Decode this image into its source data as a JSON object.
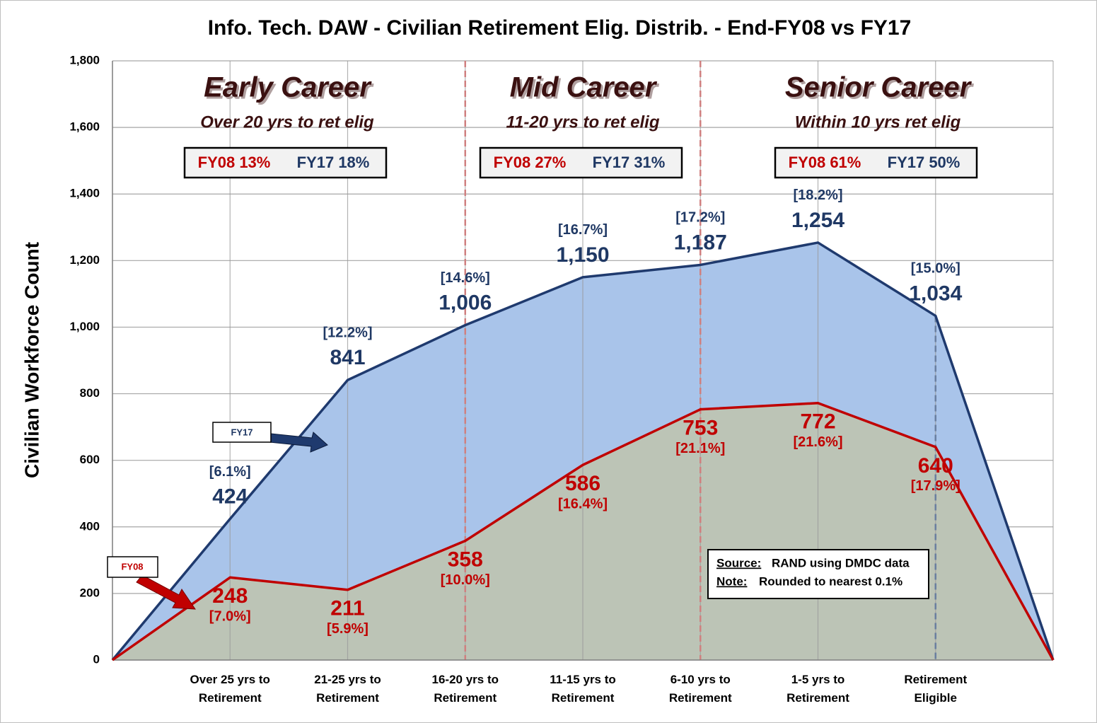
{
  "chart_data": {
    "type": "area",
    "title": "Info. Tech. DAW - Civilian Retirement Elig. Distrib. - End-FY08 vs FY17",
    "y_label": "Civilian Workforce Count",
    "categories": [
      null,
      "Over 25 yrs to Retirement",
      "21-25 yrs to Retirement",
      "16-20 yrs to Retirement",
      "11-15 yrs to Retirement",
      "6-10 yrs to Retirement",
      "1-5 yrs to Retirement",
      "Retirement Eligible",
      null
    ],
    "series": [
      {
        "name": "FY17",
        "color": "#1f3a6e",
        "fill": "#a9c4ea",
        "values": [
          0,
          424,
          841,
          1006,
          1150,
          1187,
          1254,
          1034,
          0
        ],
        "value_labels": [
          null,
          "424",
          "841",
          "1,006",
          "1,150",
          "1,187",
          "1,254",
          "1,034",
          null
        ],
        "share_labels": [
          null,
          "[6.1%]",
          "[12.2%]",
          "[14.6%]",
          "[16.7%]",
          "[17.2%]",
          "[18.2%]",
          "[15.0%]",
          null
        ]
      },
      {
        "name": "FY08",
        "color": "#c00000",
        "fill": "#bcc4b6",
        "values": [
          0,
          248,
          211,
          358,
          586,
          753,
          772,
          640,
          0
        ],
        "value_labels": [
          null,
          "248",
          "211",
          "358",
          "586",
          "753",
          "772",
          "640",
          null
        ],
        "share_labels": [
          null,
          "[7.0%]",
          "[5.9%]",
          "[10.0%]",
          "[16.4%]",
          "[21.1%]",
          "[21.6%]",
          "[17.9%]",
          null
        ]
      }
    ],
    "ylim": [
      0,
      1800
    ],
    "yticks": [
      0,
      200,
      400,
      600,
      800,
      {
        "value": 1000,
        "label": "1,000"
      },
      {
        "value": 1200,
        "label": "1,200"
      },
      {
        "value": 1400,
        "label": "1,400"
      },
      {
        "value": 1600,
        "label": "1,600"
      },
      {
        "value": 1800,
        "label": "1,800"
      }
    ],
    "grid": true,
    "sections": [
      {
        "title": "Early Career",
        "subtitle": "Over 20 yrs to ret elig",
        "fy08": "FY08 13%",
        "fy17": "FY17 18%"
      },
      {
        "title": "Mid Career",
        "subtitle": "11-20 yrs to ret elig",
        "fy08": "FY08 27%",
        "fy17": "FY17 31%"
      },
      {
        "title": "Senior Career",
        "subtitle": "Within 10 yrs ret elig",
        "fy08": "FY08 61%",
        "fy17": "FY17 50%"
      }
    ],
    "source": "Source:",
    "source_text": "RAND using DMDC data",
    "note": "Note:",
    "note_text": "Rounded to nearest 0.1%"
  }
}
